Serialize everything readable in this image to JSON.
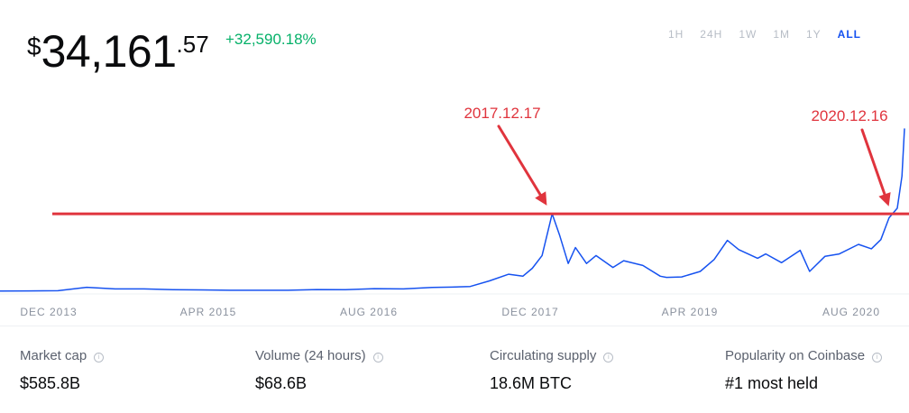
{
  "price": {
    "symbol": "$",
    "integer": "34,161",
    "decimal": ".57",
    "change": "+32,590.18%"
  },
  "ranges": [
    {
      "label": "1H",
      "active": false
    },
    {
      "label": "24H",
      "active": false
    },
    {
      "label": "1W",
      "active": false
    },
    {
      "label": "1M",
      "active": false
    },
    {
      "label": "1Y",
      "active": false
    },
    {
      "label": "ALL",
      "active": true
    }
  ],
  "colors": {
    "line": "#1652f0",
    "annotation": "#e0343d",
    "positive": "#05b169"
  },
  "chart_data": {
    "type": "line",
    "x_ticks": [
      "DEC 2013",
      "APR 2015",
      "AUG 2016",
      "DEC 2017",
      "APR 2019",
      "AUG 2020"
    ],
    "ylim": [
      0,
      42000
    ],
    "grid": false,
    "series": [
      {
        "x": [
          "2013-03-01",
          "2013-06-01",
          "2013-09-01",
          "2013-12-01",
          "2014-03-01",
          "2014-06-01",
          "2014-09-01",
          "2014-12-01",
          "2015-03-01",
          "2015-06-01",
          "2015-09-01",
          "2015-12-01",
          "2016-03-01",
          "2016-06-01",
          "2016-09-01",
          "2016-12-01",
          "2017-02-01",
          "2017-04-01",
          "2017-06-01",
          "2017-08-01",
          "2017-09-15",
          "2017-10-15",
          "2017-11-15",
          "2017-12-17",
          "2018-01-10",
          "2018-02-06",
          "2018-03-01",
          "2018-04-05",
          "2018-05-05",
          "2018-06-28",
          "2018-08-01",
          "2018-10-01",
          "2018-11-25",
          "2018-12-15",
          "2019-02-01",
          "2019-04-01",
          "2019-05-15",
          "2019-06-26",
          "2019-08-01",
          "2019-09-30",
          "2019-10-26",
          "2019-12-15",
          "2020-02-12",
          "2020-03-13",
          "2020-05-01",
          "2020-06-15",
          "2020-08-15",
          "2020-09-25",
          "2020-10-25",
          "2020-11-20",
          "2020-12-16",
          "2020-12-31",
          "2021-01-08"
        ],
        "y": [
          40,
          100,
          130,
          1000,
          600,
          600,
          400,
          330,
          260,
          240,
          240,
          430,
          420,
          650,
          600,
          950,
          1050,
          1200,
          2600,
          4300,
          3800,
          5800,
          9000,
          19500,
          14000,
          7000,
          11000,
          7000,
          9000,
          6000,
          7700,
          6500,
          3800,
          3500,
          3600,
          5000,
          8000,
          12800,
          10500,
          8300,
          9400,
          7200,
          10300,
          5000,
          8800,
          9400,
          11800,
          10700,
          13000,
          18500,
          20900,
          29000,
          41000
        ]
      }
    ],
    "annotations": [
      {
        "label": "2017.12.17",
        "x": "2017-12-17",
        "y": 19500
      },
      {
        "label": "2020.12.16",
        "x": "2020-12-16",
        "y": 19500
      }
    ],
    "reference_line": {
      "y": 19500
    }
  },
  "stats": [
    {
      "label": "Market cap",
      "value": "$585.8B"
    },
    {
      "label": "Volume (24 hours)",
      "value": "$68.6B"
    },
    {
      "label": "Circulating supply",
      "value": "18.6M BTC"
    },
    {
      "label": "Popularity on Coinbase",
      "value": "#1 most held"
    }
  ]
}
